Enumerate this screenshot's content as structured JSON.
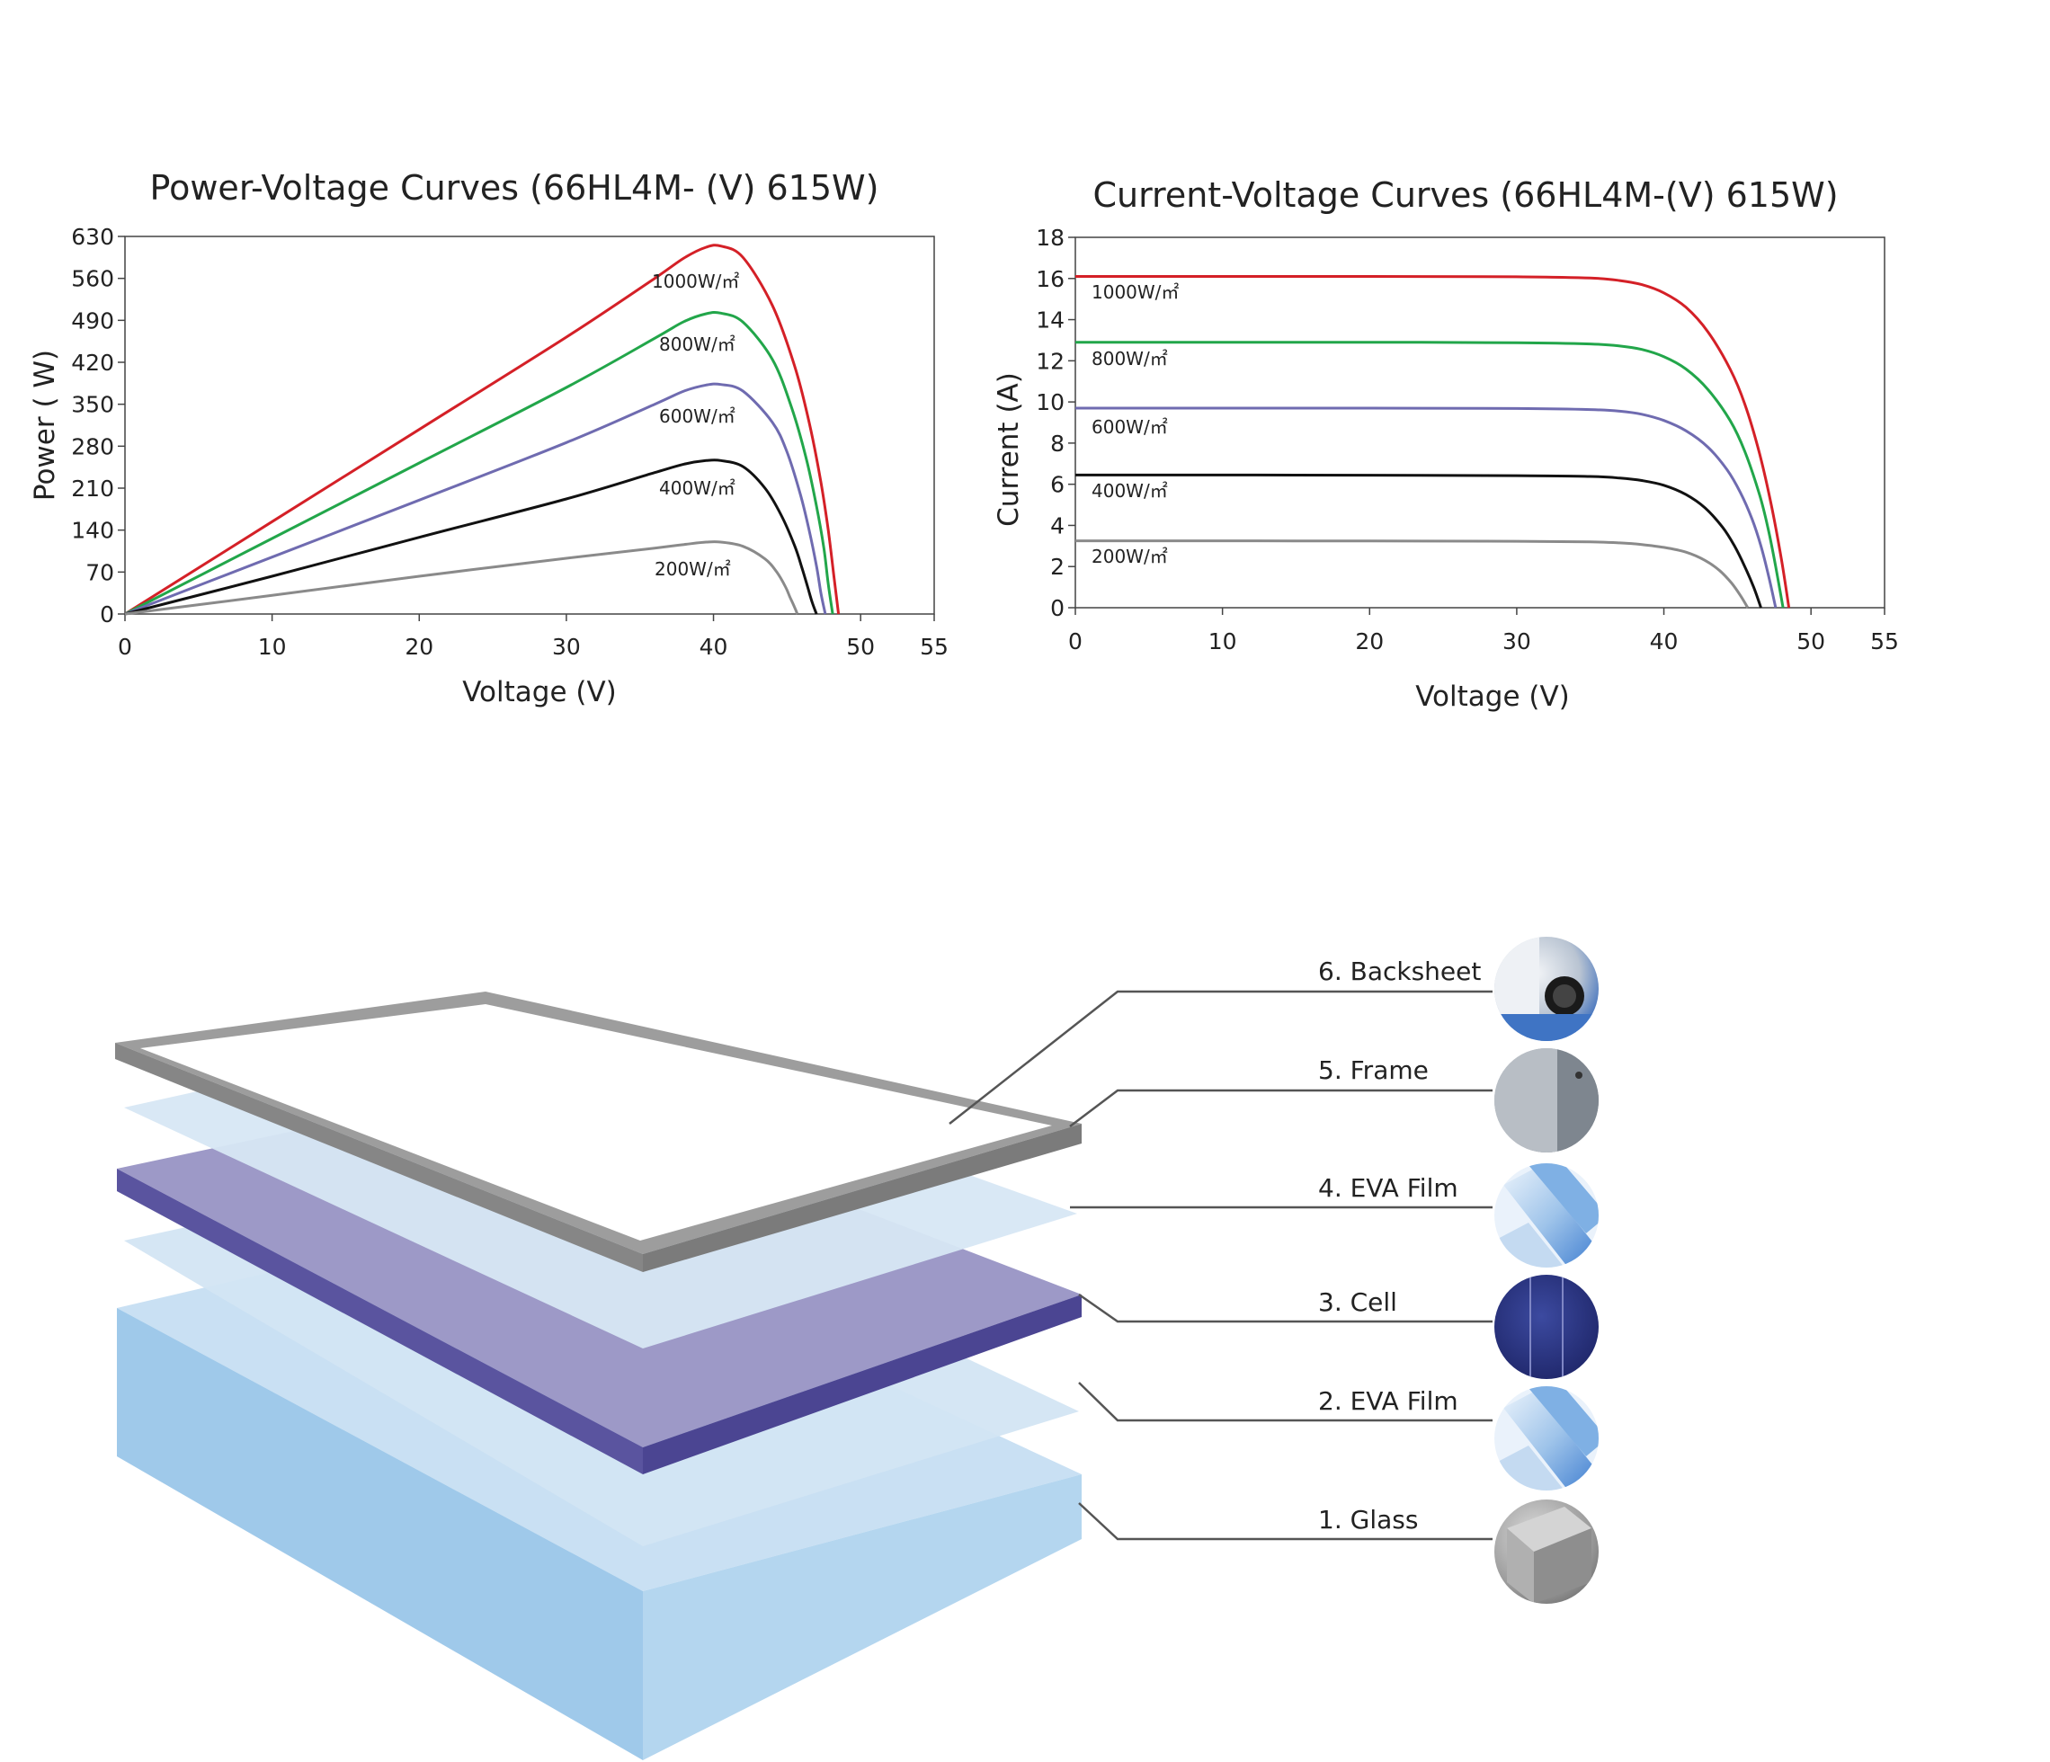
{
  "chart_data": [
    {
      "type": "line",
      "title": "Power-Voltage Curves (66HL4M- (V) 615W)",
      "xlabel": "Voltage (V)",
      "ylabel": "Power ( W)",
      "xlim": [
        0,
        55
      ],
      "ylim": [
        0,
        630
      ],
      "xticks": [
        0,
        10,
        20,
        30,
        40,
        50,
        55
      ],
      "yticks": [
        0,
        70,
        140,
        210,
        280,
        350,
        420,
        490,
        560,
        630
      ],
      "grid": false,
      "series": [
        {
          "name": "1000W/㎡",
          "color": "#d42027",
          "x": [
            0,
            10,
            20,
            30,
            36,
            38,
            39.5,
            40.5,
            42,
            44,
            45.5,
            46.5,
            47.3,
            47.8,
            48.2,
            48.5
          ],
          "y": [
            0,
            154,
            308,
            462,
            560,
            594,
            612,
            614,
            595,
            515,
            415,
            320,
            220,
            140,
            60,
            0
          ]
        },
        {
          "name": "800W/㎡",
          "color": "#22a64a",
          "x": [
            0,
            10,
            20,
            30,
            36,
            38,
            39.5,
            40.5,
            42,
            44,
            45.3,
            46.3,
            47,
            47.5,
            47.8,
            48.1
          ],
          "y": [
            0,
            126,
            252,
            378,
            460,
            488,
            501,
            502,
            487,
            425,
            345,
            260,
            180,
            110,
            50,
            0
          ]
        },
        {
          "name": "600W/㎡",
          "color": "#6f6bb0",
          "x": [
            0,
            10,
            20,
            30,
            36,
            38,
            39.5,
            40.5,
            42,
            44,
            45,
            45.9,
            46.5,
            47,
            47.3,
            47.6
          ],
          "y": [
            0,
            95,
            190,
            286,
            350,
            372,
            382,
            383,
            372,
            320,
            270,
            200,
            140,
            80,
            35,
            0
          ]
        },
        {
          "name": "400W/㎡",
          "color": "#111111",
          "x": [
            0,
            10,
            20,
            30,
            36,
            38,
            39.5,
            40.5,
            42,
            43.5,
            44.6,
            45.5,
            46,
            46.4,
            46.7,
            47
          ],
          "y": [
            0,
            63,
            128,
            192,
            236,
            250,
            256,
            256,
            246,
            210,
            165,
            115,
            78,
            45,
            20,
            0
          ]
        },
        {
          "name": "200W/㎡",
          "color": "#8a8a8a",
          "x": [
            0,
            10,
            20,
            30,
            36,
            38,
            39.5,
            40.5,
            42,
            43.5,
            44.3,
            44.9,
            45.2,
            45.5,
            45.7
          ],
          "y": [
            0,
            31,
            63,
            93,
            110,
            116,
            120,
            120,
            113,
            92,
            70,
            45,
            28,
            12,
            0
          ]
        }
      ]
    },
    {
      "type": "line",
      "title": "Current-Voltage Curves (66HL4M-(V) 615W)",
      "xlabel": "Voltage (V)",
      "ylabel": "Current (A)",
      "xlim": [
        0,
        55
      ],
      "ylim": [
        0,
        18
      ],
      "xticks": [
        0,
        10,
        20,
        30,
        40,
        50,
        55
      ],
      "yticks": [
        0,
        2,
        4,
        6,
        8,
        10,
        12,
        14,
        16,
        18
      ],
      "grid": false,
      "series": [
        {
          "name": "1000W/㎡",
          "color": "#d42027",
          "x": [
            0,
            10,
            20,
            30,
            35,
            37,
            38.5,
            40,
            41.5,
            43,
            44.5,
            45.5,
            46.5,
            47.3,
            48,
            48.5
          ],
          "y": [
            16.1,
            16.1,
            16.1,
            16.08,
            16.02,
            15.9,
            15.7,
            15.3,
            14.6,
            13.4,
            11.6,
            9.9,
            7.5,
            5.0,
            2.3,
            0
          ]
        },
        {
          "name": "800W/㎡",
          "color": "#22a64a",
          "x": [
            0,
            10,
            20,
            30,
            35,
            37,
            38.5,
            40,
            41.5,
            43,
            44.5,
            45.5,
            46.5,
            47.1,
            47.6,
            48.1
          ],
          "y": [
            12.9,
            12.9,
            12.9,
            12.88,
            12.82,
            12.72,
            12.55,
            12.2,
            11.6,
            10.6,
            9.1,
            7.6,
            5.5,
            3.8,
            2.0,
            0
          ]
        },
        {
          "name": "600W/㎡",
          "color": "#6f6bb0",
          "x": [
            0,
            10,
            20,
            30,
            35,
            37,
            38.5,
            40,
            41.5,
            43,
            44.3,
            45.2,
            46,
            46.6,
            47.1,
            47.6
          ],
          "y": [
            9.7,
            9.7,
            9.7,
            9.68,
            9.63,
            9.55,
            9.4,
            9.1,
            8.6,
            7.8,
            6.7,
            5.6,
            4.3,
            3.0,
            1.6,
            0
          ]
        },
        {
          "name": "400W/㎡",
          "color": "#111111",
          "x": [
            0,
            10,
            20,
            30,
            35,
            37,
            38.5,
            40,
            41.5,
            42.8,
            44,
            44.8,
            45.5,
            46.1,
            46.6
          ],
          "y": [
            6.45,
            6.45,
            6.44,
            6.42,
            6.38,
            6.3,
            6.18,
            5.95,
            5.5,
            4.85,
            3.9,
            3.0,
            2.0,
            1.0,
            0
          ]
        },
        {
          "name": "200W/㎡",
          "color": "#8a8a8a",
          "x": [
            0,
            10,
            20,
            30,
            35,
            37,
            38.5,
            40,
            41.5,
            42.8,
            43.8,
            44.6,
            45.2,
            45.7
          ],
          "y": [
            3.25,
            3.25,
            3.24,
            3.23,
            3.2,
            3.15,
            3.07,
            2.93,
            2.7,
            2.3,
            1.8,
            1.2,
            0.6,
            0
          ]
        }
      ]
    }
  ],
  "diagram": {
    "layers": [
      {
        "label": "6. Backsheet",
        "icon": "backsheet-icon"
      },
      {
        "label": "5. Frame",
        "icon": "frame-icon"
      },
      {
        "label": "4. EVA Film",
        "icon": "eva-film-icon"
      },
      {
        "label": "3. Cell",
        "icon": "cell-icon"
      },
      {
        "label": "2. EVA Film",
        "icon": "eva-film-icon"
      },
      {
        "label": "1. Glass",
        "icon": "glass-icon"
      }
    ],
    "colors": {
      "frame": "#9a9a9a",
      "eva": "#d3e5f3",
      "cell_top": "#9c98c6",
      "cell_side": "#5b55a2",
      "glass_top": "#c6dff2",
      "glass_side": "#9cc7e8"
    }
  }
}
